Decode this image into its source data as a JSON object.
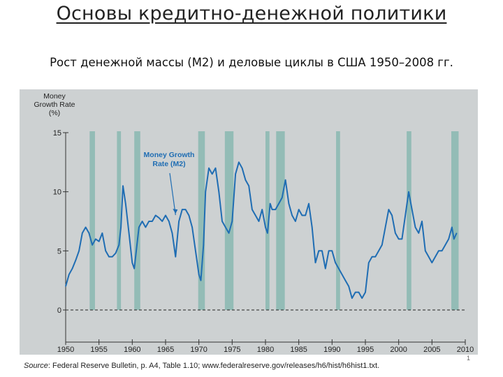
{
  "slide": {
    "title": "Основы кредитно-денежной политики",
    "subtitle": "Рост денежной массы (M2) и деловые циклы в США 1950–2008 гг.",
    "source_label": "Source",
    "source_text": ": Federal Reserve Bulletin, p. A4, Table 1.10; www.federalreserve.gov/releases/h6/hist/h6hist1.txt.",
    "page_number": "1"
  },
  "colors": {
    "plot_background": "#cdd1d2",
    "line": "#1f6db3",
    "recession_band": "#93bcb6",
    "axis": "#333333",
    "annotation": "#1f6db3"
  },
  "chart_data": {
    "type": "line",
    "y_axis_title": [
      "Money",
      "Growth Rate",
      "(%)"
    ],
    "xlim": [
      1950,
      2010
    ],
    "ylim": [
      0,
      15
    ],
    "x_ticks": [
      1950,
      1955,
      1960,
      1965,
      1970,
      1975,
      1980,
      1985,
      1990,
      1995,
      2000,
      2005,
      2010
    ],
    "y_ticks": [
      0,
      5,
      10,
      15
    ],
    "zero_line": "dashed",
    "annotation": {
      "lines": [
        "Money Growth",
        "Rate (M2)"
      ],
      "points_to": {
        "x": 1953.6,
        "y": 8.5
      }
    },
    "recessions": [
      [
        1953.6,
        1954.4
      ],
      [
        1957.7,
        1958.3
      ],
      [
        1960.3,
        1961.2
      ],
      [
        1969.9,
        1970.9
      ],
      [
        1973.9,
        1975.2
      ],
      [
        1980.0,
        1980.6
      ],
      [
        1981.6,
        1982.9
      ],
      [
        1990.6,
        1991.2
      ],
      [
        2001.2,
        2001.9
      ],
      [
        2007.9,
        2009.0
      ]
    ],
    "series": [
      {
        "values": [
          [
            1950.0,
            2.0
          ],
          [
            1950.5,
            3.0
          ],
          [
            1951.0,
            3.5
          ],
          [
            1951.5,
            4.2
          ],
          [
            1952.0,
            5.0
          ],
          [
            1952.5,
            6.5
          ],
          [
            1953.0,
            7.0
          ],
          [
            1953.5,
            6.5
          ],
          [
            1954.0,
            5.5
          ],
          [
            1954.5,
            6.0
          ],
          [
            1955.0,
            5.8
          ],
          [
            1955.5,
            6.5
          ],
          [
            1956.0,
            5.0
          ],
          [
            1956.5,
            4.5
          ],
          [
            1957.0,
            4.5
          ],
          [
            1957.5,
            4.8
          ],
          [
            1958.0,
            5.5
          ],
          [
            1958.3,
            7.0
          ],
          [
            1958.6,
            10.5
          ],
          [
            1959.0,
            9.0
          ],
          [
            1959.5,
            6.5
          ],
          [
            1960.0,
            4.0
          ],
          [
            1960.3,
            3.5
          ],
          [
            1960.7,
            5.5
          ],
          [
            1961.0,
            7.0
          ],
          [
            1961.5,
            7.5
          ],
          [
            1962.0,
            7.0
          ],
          [
            1962.5,
            7.5
          ],
          [
            1963.0,
            7.5
          ],
          [
            1963.5,
            8.0
          ],
          [
            1964.0,
            7.8
          ],
          [
            1964.5,
            7.5
          ],
          [
            1965.0,
            8.0
          ],
          [
            1965.5,
            7.5
          ],
          [
            1966.0,
            6.5
          ],
          [
            1966.5,
            4.5
          ],
          [
            1967.0,
            7.5
          ],
          [
            1967.5,
            8.5
          ],
          [
            1968.0,
            8.5
          ],
          [
            1968.5,
            8.0
          ],
          [
            1969.0,
            7.0
          ],
          [
            1969.5,
            5.0
          ],
          [
            1970.0,
            3.0
          ],
          [
            1970.3,
            2.5
          ],
          [
            1970.7,
            5.5
          ],
          [
            1971.0,
            10.0
          ],
          [
            1971.5,
            12.0
          ],
          [
            1972.0,
            11.5
          ],
          [
            1972.5,
            12.0
          ],
          [
            1973.0,
            10.0
          ],
          [
            1973.5,
            7.5
          ],
          [
            1974.0,
            7.0
          ],
          [
            1974.5,
            6.5
          ],
          [
            1975.0,
            7.5
          ],
          [
            1975.5,
            11.5
          ],
          [
            1976.0,
            12.5
          ],
          [
            1976.5,
            12.0
          ],
          [
            1977.0,
            11.0
          ],
          [
            1977.5,
            10.5
          ],
          [
            1978.0,
            8.5
          ],
          [
            1978.5,
            8.0
          ],
          [
            1979.0,
            7.5
          ],
          [
            1979.5,
            8.5
          ],
          [
            1980.0,
            7.0
          ],
          [
            1980.3,
            6.5
          ],
          [
            1980.7,
            9.0
          ],
          [
            1981.0,
            8.5
          ],
          [
            1981.5,
            8.5
          ],
          [
            1982.0,
            9.0
          ],
          [
            1982.5,
            9.5
          ],
          [
            1983.0,
            11.0
          ],
          [
            1983.5,
            9.0
          ],
          [
            1984.0,
            8.0
          ],
          [
            1984.5,
            7.5
          ],
          [
            1985.0,
            8.5
          ],
          [
            1985.5,
            8.0
          ],
          [
            1986.0,
            8.0
          ],
          [
            1986.5,
            9.0
          ],
          [
            1987.0,
            7.0
          ],
          [
            1987.5,
            4.0
          ],
          [
            1988.0,
            5.0
          ],
          [
            1988.5,
            5.0
          ],
          [
            1989.0,
            3.5
          ],
          [
            1989.5,
            5.0
          ],
          [
            1990.0,
            5.0
          ],
          [
            1990.5,
            4.0
          ],
          [
            1991.0,
            3.5
          ],
          [
            1991.5,
            3.0
          ],
          [
            1992.0,
            2.5
          ],
          [
            1992.5,
            2.0
          ],
          [
            1993.0,
            1.0
          ],
          [
            1993.5,
            1.5
          ],
          [
            1994.0,
            1.5
          ],
          [
            1994.5,
            1.0
          ],
          [
            1995.0,
            1.5
          ],
          [
            1995.5,
            4.0
          ],
          [
            1996.0,
            4.5
          ],
          [
            1996.5,
            4.5
          ],
          [
            1997.0,
            5.0
          ],
          [
            1997.5,
            5.5
          ],
          [
            1998.0,
            7.0
          ],
          [
            1998.5,
            8.5
          ],
          [
            1999.0,
            8.0
          ],
          [
            1999.5,
            6.5
          ],
          [
            2000.0,
            6.0
          ],
          [
            2000.5,
            6.0
          ],
          [
            2001.0,
            8.0
          ],
          [
            2001.5,
            10.0
          ],
          [
            2002.0,
            8.5
          ],
          [
            2002.5,
            7.0
          ],
          [
            2003.0,
            6.5
          ],
          [
            2003.5,
            7.5
          ],
          [
            2004.0,
            5.0
          ],
          [
            2004.5,
            4.5
          ],
          [
            2005.0,
            4.0
          ],
          [
            2005.5,
            4.5
          ],
          [
            2006.0,
            5.0
          ],
          [
            2006.5,
            5.0
          ],
          [
            2007.0,
            5.5
          ],
          [
            2007.5,
            6.0
          ],
          [
            2008.0,
            7.0
          ],
          [
            2008.3,
            6.0
          ],
          [
            2008.7,
            6.5
          ]
        ]
      }
    ]
  }
}
